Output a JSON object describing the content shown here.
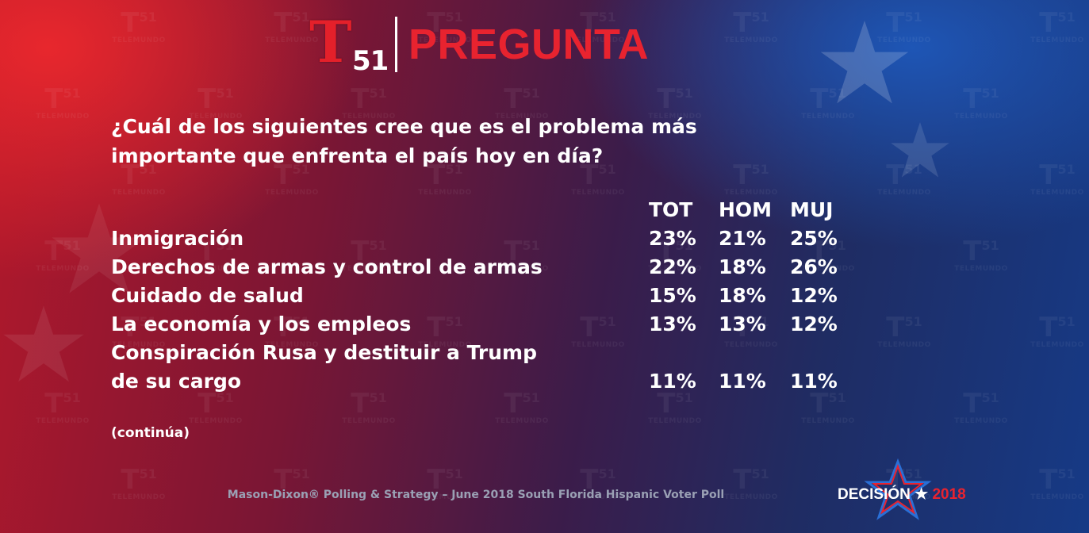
{
  "logo": {
    "number": "51",
    "letter": "T"
  },
  "header": {
    "title": "PREGUNTA"
  },
  "watermark": {
    "letter": "T",
    "number": "51",
    "word": "TELEMUNDO"
  },
  "question": "¿Cuál de los siguientes cree que es el problema más importante que enfrenta el país hoy en día?",
  "table": {
    "columns": [
      "TOT",
      "HOM",
      "MUJ"
    ],
    "rows": [
      {
        "label": "Inmigración",
        "values": [
          "23%",
          "21%",
          "25%"
        ]
      },
      {
        "label": "Derechos de armas y control de armas",
        "values": [
          "22%",
          "18%",
          "26%"
        ]
      },
      {
        "label": "Cuidado de salud",
        "values": [
          "15%",
          "18%",
          "12%"
        ]
      },
      {
        "label": "La economía y los empleos",
        "values": [
          "13%",
          "13%",
          "12%"
        ]
      },
      {
        "label_line1": "Conspiración Rusa y destituir a Trump",
        "label_line2": "de su cargo",
        "values": [
          "11%",
          "11%",
          "11%"
        ]
      }
    ]
  },
  "note": "(continúa)",
  "footer": {
    "source": "Mason-Dixon® Polling & Strategy – June 2018 South Florida Hispanic Voter Poll"
  },
  "badge": {
    "word": "DECISIÓN",
    "year": "2018"
  },
  "colors": {
    "accent_red": "#e8232f",
    "text": "#ffffff",
    "source_text": "#9aa0b4"
  }
}
